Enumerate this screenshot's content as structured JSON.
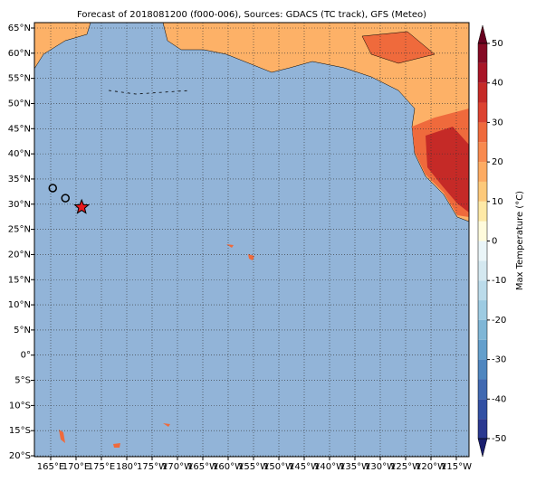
{
  "chart_data": {
    "type": "map",
    "title": "Forecast of 2018081200 (f000-006), Sources: GDACS (TC track), GFS (Meteo)",
    "xticks": [
      {
        "value": 165,
        "label": "165°E"
      },
      {
        "value": 170,
        "label": "170°E"
      },
      {
        "value": 175,
        "label": "175°E"
      },
      {
        "value": 180,
        "label": "180°"
      },
      {
        "value": -175,
        "label": "175°W"
      },
      {
        "value": -170,
        "label": "170°W"
      },
      {
        "value": -165,
        "label": "165°W"
      },
      {
        "value": -160,
        "label": "160°W"
      },
      {
        "value": -155,
        "label": "155°W"
      },
      {
        "value": -150,
        "label": "150°W"
      },
      {
        "value": -145,
        "label": "145°W"
      },
      {
        "value": -140,
        "label": "140°W"
      },
      {
        "value": -135,
        "label": "135°W"
      },
      {
        "value": -130,
        "label": "130°W"
      },
      {
        "value": -125,
        "label": "125°W"
      },
      {
        "value": -120,
        "label": "120°W"
      },
      {
        "value": -115,
        "label": "115°W"
      }
    ],
    "yticks": [
      {
        "value": 65,
        "label": "65°N"
      },
      {
        "value": 60,
        "label": "60°N"
      },
      {
        "value": 55,
        "label": "55°N"
      },
      {
        "value": 50,
        "label": "50°N"
      },
      {
        "value": 45,
        "label": "45°N"
      },
      {
        "value": 40,
        "label": "40°N"
      },
      {
        "value": 35,
        "label": "35°N"
      },
      {
        "value": 30,
        "label": "30°N"
      },
      {
        "value": 25,
        "label": "25°N"
      },
      {
        "value": 20,
        "label": "20°N"
      },
      {
        "value": 15,
        "label": "15°N"
      },
      {
        "value": 10,
        "label": "10°N"
      },
      {
        "value": 5,
        "label": "5°N"
      },
      {
        "value": 0,
        "label": "0°"
      },
      {
        "value": -5,
        "label": "5°S"
      },
      {
        "value": -10,
        "label": "10°S"
      },
      {
        "value": -15,
        "label": "15°S"
      },
      {
        "value": -20,
        "label": "20°S"
      }
    ],
    "grid": true,
    "ocean_color": "#92b4d8",
    "track": {
      "lon": [
        165.4,
        167.9
      ],
      "lat": [
        33.2,
        31.2
      ],
      "color": "none"
    },
    "current": {
      "lon": 171.1,
      "lat": 29.4,
      "color": "#e8191e"
    },
    "colorbar": {
      "label": "Max Temperature (°C)",
      "lim": [
        -50,
        50
      ],
      "ticks": [
        -50,
        -40,
        -30,
        -20,
        -10,
        0,
        10,
        20,
        30,
        40,
        50
      ],
      "colors": [
        "#2b3990",
        "#3250a3",
        "#4169b1",
        "#4f86bf",
        "#649fcc",
        "#7fb6d6",
        "#9dcbe2",
        "#bbdbea",
        "#d4e8f0",
        "#eaf5f8",
        "#fffbdc",
        "#fee9a6",
        "#fdc97a",
        "#fdab62",
        "#f88a4f",
        "#ef6a3c",
        "#dc4230",
        "#c52a27",
        "#a81527",
        "#850a24"
      ],
      "under": "#1a1f6e",
      "over": "#67001f"
    }
  }
}
